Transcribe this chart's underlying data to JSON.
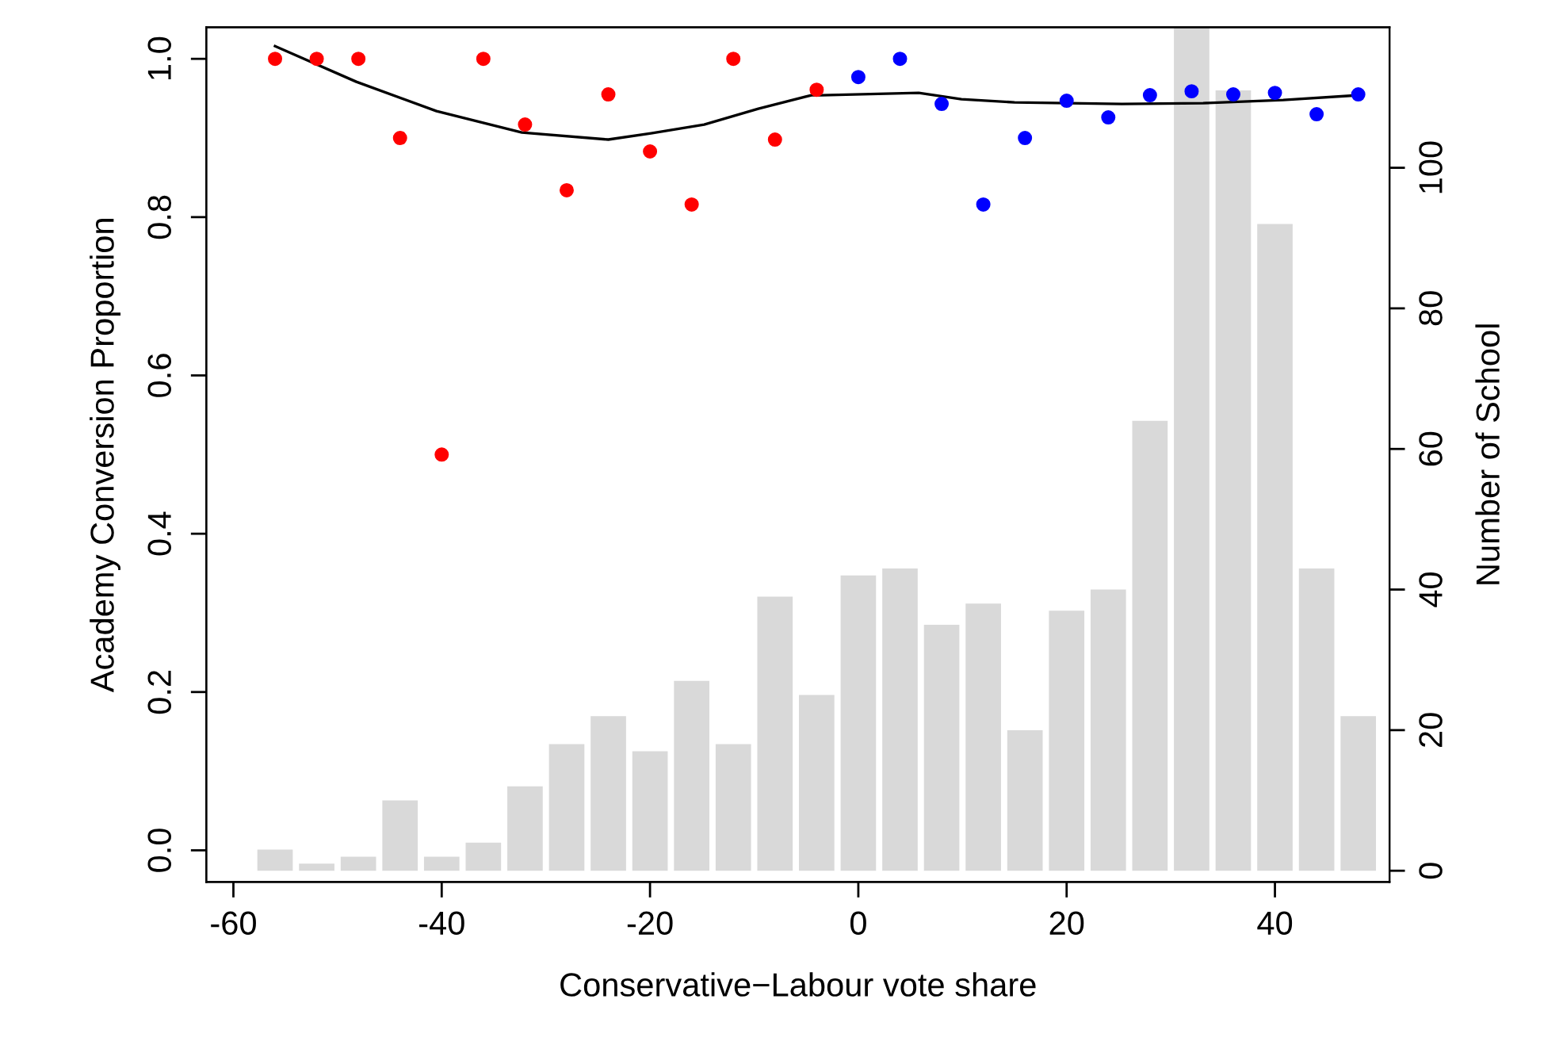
{
  "chart_data": {
    "type": "scatter",
    "xlabel": "Conservative−Labour vote share",
    "ylabel": "Academy Conversion Proportion",
    "y2label": "Number of School",
    "xlim": [
      -62.6,
      51
    ],
    "xticks": [
      -60,
      -40,
      -20,
      0,
      20,
      40
    ],
    "ylim": [
      -0.04,
      1.04
    ],
    "yticks": [
      {
        "value": 0,
        "label": "0.0"
      },
      0.2,
      0.4,
      0.6,
      0.8,
      {
        "value": 1,
        "label": "1.0"
      }
    ],
    "y2lim": [
      -1.6,
      120
    ],
    "y2ticks": [
      0,
      20,
      40,
      60,
      80,
      100
    ],
    "grid": false,
    "legend": false,
    "marker": "circle",
    "series": [
      {
        "type": "bar",
        "axis": "y2",
        "color": "#d9d9d9",
        "x": [
          -56,
          -52,
          -48,
          -44,
          -40,
          -36,
          -32,
          -28,
          -24,
          -20,
          -16,
          -12,
          -8,
          -4,
          0,
          4,
          8,
          12,
          16,
          20,
          24,
          28,
          32,
          36,
          40,
          44,
          48
        ],
        "values": [
          3,
          1,
          2,
          10,
          2,
          4,
          12,
          18,
          22,
          17,
          27,
          18,
          39,
          25,
          42,
          43,
          35,
          38,
          20,
          37,
          40,
          64,
          120,
          111,
          92,
          43,
          22
        ]
      },
      {
        "color": "#ff0000",
        "x": [
          -56,
          -52,
          -48,
          -44,
          -40,
          -36,
          -32,
          -28,
          -24,
          -20,
          -16,
          -12,
          -8,
          -4
        ],
        "values": [
          1.0,
          1.0,
          1.0,
          0.9,
          0.5,
          1.0,
          0.917,
          0.834,
          0.955,
          0.883,
          0.816,
          1.0,
          0.898,
          0.961
        ]
      },
      {
        "color": "#0000ff",
        "x": [
          0,
          4,
          8,
          12,
          16,
          20,
          24,
          28,
          32,
          36,
          40,
          44,
          48
        ],
        "values": [
          0.977,
          1.0,
          0.943,
          0.816,
          0.9,
          0.947,
          0.926,
          0.954,
          0.959,
          0.955,
          0.957,
          0.93,
          0.955
        ]
      },
      {
        "type": "line",
        "color": "#000000",
        "marker": "none",
        "x": [
          -56,
          -48.2,
          -40.5,
          -32.3,
          -24,
          -19.9,
          -14.8,
          -9.6,
          -4.5,
          -3.5,
          5.8,
          9.9,
          15,
          25.3,
          33.1,
          40.8,
          48
        ],
        "values": [
          1.016,
          0.971,
          0.934,
          0.907,
          0.898,
          0.906,
          0.917,
          0.937,
          0.954,
          0.954,
          0.957,
          0.949,
          0.945,
          0.943,
          0.944,
          0.948,
          0.954
        ]
      }
    ]
  }
}
